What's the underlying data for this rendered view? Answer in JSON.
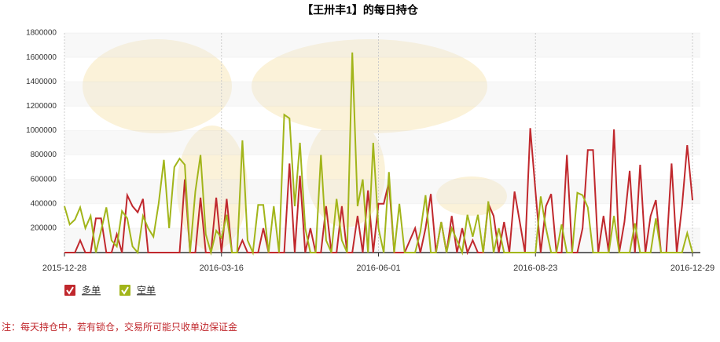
{
  "chart_data": {
    "type": "line",
    "title": "【王卅丰1】的每日持仓",
    "note": "注：每天持仓中，若有锁仓，交易所可能只收单边保证金",
    "categories": [
      "2015-12-28",
      null,
      null,
      null,
      null,
      null,
      null,
      null,
      null,
      null,
      null,
      null,
      null,
      null,
      null,
      null,
      null,
      null,
      null,
      null,
      null,
      null,
      null,
      null,
      null,
      null,
      null,
      null,
      null,
      null,
      "2016-03-16",
      null,
      null,
      null,
      null,
      null,
      null,
      null,
      null,
      null,
      null,
      null,
      null,
      null,
      null,
      null,
      null,
      null,
      null,
      null,
      null,
      null,
      null,
      null,
      null,
      null,
      null,
      null,
      null,
      null,
      "2016-06-01",
      null,
      null,
      null,
      null,
      null,
      null,
      null,
      null,
      null,
      null,
      null,
      null,
      null,
      null,
      null,
      null,
      null,
      null,
      null,
      null,
      null,
      null,
      null,
      null,
      null,
      null,
      null,
      null,
      null,
      "2016-08-23",
      null,
      null,
      null,
      null,
      null,
      null,
      null,
      null,
      null,
      null,
      null,
      null,
      null,
      null,
      null,
      null,
      null,
      null,
      null,
      null,
      null,
      null,
      null,
      null,
      null,
      null,
      null,
      null,
      null,
      "2016-12-29"
    ],
    "series": [
      {
        "name": "多单",
        "color": "#c0282d",
        "values": [
          0,
          0,
          0,
          100000,
          0,
          0,
          280000,
          280000,
          0,
          0,
          150000,
          0,
          470000,
          380000,
          330000,
          440000,
          0,
          0,
          0,
          0,
          0,
          0,
          0,
          600000,
          0,
          0,
          450000,
          0,
          0,
          450000,
          0,
          440000,
          0,
          0,
          100000,
          0,
          0,
          0,
          200000,
          0,
          0,
          0,
          0,
          730000,
          0,
          630000,
          0,
          200000,
          0,
          0,
          380000,
          0,
          0,
          380000,
          0,
          0,
          300000,
          0,
          510000,
          0,
          400000,
          400000,
          580000,
          0,
          0,
          0,
          100000,
          200000,
          0,
          200000,
          480000,
          0,
          250000,
          0,
          300000,
          0,
          200000,
          0,
          100000,
          0,
          0,
          400000,
          300000,
          0,
          250000,
          0,
          500000,
          250000,
          0,
          1020000,
          500000,
          0,
          380000,
          480000,
          0,
          0,
          800000,
          0,
          0,
          200000,
          840000,
          840000,
          0,
          300000,
          0,
          1010000,
          0,
          250000,
          670000,
          0,
          720000,
          0,
          300000,
          430000,
          0,
          0,
          730000,
          0,
          380000,
          880000,
          430000
        ]
      },
      {
        "name": "空单",
        "color": "#a2b51a",
        "values": [
          380000,
          230000,
          270000,
          370000,
          200000,
          300000,
          0,
          180000,
          370000,
          100000,
          50000,
          340000,
          280000,
          50000,
          0,
          300000,
          200000,
          130000,
          400000,
          760000,
          200000,
          700000,
          770000,
          720000,
          0,
          500000,
          800000,
          150000,
          0,
          180000,
          120000,
          310000,
          0,
          0,
          920000,
          100000,
          0,
          390000,
          390000,
          0,
          380000,
          0,
          1130000,
          1100000,
          380000,
          900000,
          200000,
          0,
          0,
          800000,
          100000,
          0,
          440000,
          100000,
          0,
          1640000,
          380000,
          600000,
          0,
          900000,
          200000,
          0,
          660000,
          0,
          400000,
          0,
          0,
          0,
          170000,
          470000,
          0,
          0,
          250000,
          0,
          200000,
          100000,
          0,
          310000,
          130000,
          310000,
          0,
          420000,
          0,
          200000,
          0,
          0,
          0,
          0,
          0,
          0,
          0,
          460000,
          200000,
          0,
          0,
          230000,
          0,
          0,
          490000,
          470000,
          370000,
          0,
          0,
          0,
          0,
          300000,
          0,
          0,
          0,
          240000,
          0,
          0,
          0,
          280000,
          0,
          0,
          0,
          0,
          0,
          160000,
          0
        ]
      }
    ],
    "ylim": [
      0,
      1800000
    ],
    "yticks": [
      200000,
      400000,
      600000,
      800000,
      1000000,
      1200000,
      1400000,
      1600000,
      1800000
    ],
    "grid": true
  }
}
